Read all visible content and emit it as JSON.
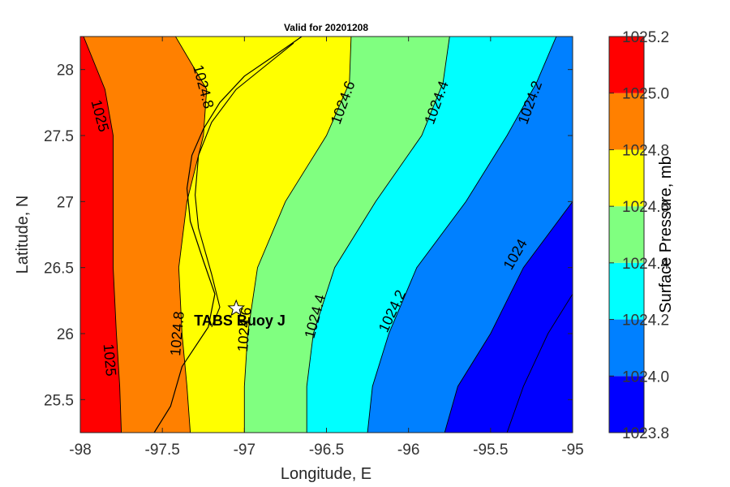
{
  "chart_data": {
    "type": "contour",
    "title": "Valid for 20201208",
    "xlabel": "Longitude, E",
    "ylabel": "Latitude, N",
    "xlim": [
      -98,
      -95
    ],
    "ylim": [
      25.25,
      28.25
    ],
    "x_ticks": [
      "-98",
      "-97.5",
      "-97",
      "-96.5",
      "-96",
      "-95.5",
      "-95"
    ],
    "y_ticks": [
      "25.5",
      "26",
      "26.5",
      "27",
      "27.5",
      "28"
    ],
    "station": {
      "name": "TABS Buoy J",
      "lon": -97.05,
      "lat": 26.19
    },
    "contour_levels": [
      1023.8,
      1024.0,
      1024.2,
      1024.4,
      1024.6,
      1024.8,
      1025.0,
      1025.2
    ],
    "contour_colors": [
      "#0000ff",
      "#0080ff",
      "#00ffff",
      "#80ff80",
      "#ffff00",
      "#ff8000",
      "#ff0000"
    ],
    "contour_lines": [
      {
        "level": 1025.0,
        "points": [
          [
            -97.75,
            25.25
          ],
          [
            -97.76,
            25.6
          ],
          [
            -97.78,
            26.0
          ],
          [
            -97.8,
            26.5
          ],
          [
            -97.8,
            27.0
          ],
          [
            -97.8,
            27.5
          ],
          [
            -97.85,
            27.85
          ],
          [
            -97.98,
            28.25
          ]
        ]
      },
      {
        "level": 1024.8,
        "points": [
          [
            -97.33,
            25.25
          ],
          [
            -97.35,
            25.6
          ],
          [
            -97.38,
            26.0
          ],
          [
            -97.4,
            26.5
          ],
          [
            -97.35,
            27.0
          ],
          [
            -97.25,
            27.5
          ],
          [
            -97.23,
            27.85
          ],
          [
            -97.42,
            28.25
          ]
        ]
      },
      {
        "level": 1024.6,
        "points": [
          [
            -97.0,
            25.25
          ],
          [
            -97.0,
            25.6
          ],
          [
            -96.98,
            26.0
          ],
          [
            -96.92,
            26.5
          ],
          [
            -96.75,
            27.0
          ],
          [
            -96.5,
            27.5
          ],
          [
            -96.36,
            27.9
          ],
          [
            -96.35,
            28.25
          ]
        ]
      },
      {
        "level": 1024.4,
        "points": [
          [
            -96.62,
            25.25
          ],
          [
            -96.62,
            25.6
          ],
          [
            -96.58,
            26.0
          ],
          [
            -96.45,
            26.5
          ],
          [
            -96.2,
            27.0
          ],
          [
            -95.92,
            27.5
          ],
          [
            -95.79,
            27.9
          ],
          [
            -95.75,
            28.25
          ]
        ]
      },
      {
        "level": 1024.2,
        "points": [
          [
            -96.25,
            25.25
          ],
          [
            -96.22,
            25.6
          ],
          [
            -96.12,
            26.0
          ],
          [
            -95.95,
            26.5
          ],
          [
            -95.65,
            27.0
          ],
          [
            -95.4,
            27.5
          ],
          [
            -95.22,
            27.9
          ],
          [
            -95.1,
            28.25
          ]
        ]
      },
      {
        "level": 1024.0,
        "points": [
          [
            -95.78,
            25.25
          ],
          [
            -95.7,
            25.6
          ],
          [
            -95.5,
            26.0
          ],
          [
            -95.3,
            26.5
          ],
          [
            -95.0,
            27.0
          ]
        ]
      },
      {
        "level": 1023.8,
        "points": [
          [
            -95.4,
            25.25
          ],
          [
            -95.3,
            25.6
          ],
          [
            -95.15,
            26.0
          ],
          [
            -95.0,
            26.3
          ]
        ]
      }
    ],
    "contour_labels": [
      {
        "text": "1025",
        "lon": -97.88,
        "lat": 27.65,
        "rotate": 75
      },
      {
        "text": "1025",
        "lon": -97.82,
        "lat": 25.8,
        "rotate": 85
      },
      {
        "text": "1024.8",
        "lon": -97.25,
        "lat": 27.87,
        "rotate": 75
      },
      {
        "text": "1024.8",
        "lon": -97.41,
        "lat": 26.0,
        "rotate": -85
      },
      {
        "text": "1024.6",
        "lon": -96.4,
        "lat": 27.75,
        "rotate": -70
      },
      {
        "text": "1024.6",
        "lon": -97.0,
        "lat": 26.03,
        "rotate": -85
      },
      {
        "text": "1024.4",
        "lon": -95.83,
        "lat": 27.75,
        "rotate": -70
      },
      {
        "text": "1024.4",
        "lon": -96.57,
        "lat": 26.13,
        "rotate": -75
      },
      {
        "text": "1024.2",
        "lon": -95.26,
        "lat": 27.75,
        "rotate": -70
      },
      {
        "text": "1024.2",
        "lon": -96.1,
        "lat": 26.17,
        "rotate": -65
      },
      {
        "text": "1024",
        "lon": -95.35,
        "lat": 26.6,
        "rotate": -60
      }
    ],
    "colorbar": {
      "label": "Surface Pressure, mb",
      "tick_labels": [
        "1025.2",
        "1025.0",
        "1024.8",
        "1024.6",
        "1024.4",
        "1024.2",
        "1024.0",
        "1023.8"
      ]
    },
    "coastline": [
      [
        -97.55,
        25.25
      ],
      [
        -97.45,
        25.45
      ],
      [
        -97.38,
        25.75
      ],
      [
        -97.3,
        25.9
      ],
      [
        -97.22,
        26.05
      ],
      [
        -97.18,
        26.3
      ],
      [
        -97.25,
        26.55
      ],
      [
        -97.33,
        26.85
      ],
      [
        -97.35,
        27.1
      ],
      [
        -97.32,
        27.35
      ],
      [
        -97.25,
        27.55
      ],
      [
        -97.15,
        27.75
      ],
      [
        -97.0,
        27.95
      ],
      [
        -96.8,
        28.12
      ],
      [
        -96.65,
        28.25
      ]
    ],
    "barrier_island": [
      [
        -97.2,
        26.05
      ],
      [
        -97.15,
        26.2
      ],
      [
        -97.2,
        26.45
      ],
      [
        -97.28,
        26.8
      ],
      [
        -97.3,
        27.05
      ],
      [
        -97.28,
        27.35
      ],
      [
        -97.2,
        27.6
      ],
      [
        -97.05,
        27.85
      ],
      [
        -96.85,
        28.05
      ],
      [
        -96.7,
        28.2
      ]
    ]
  }
}
